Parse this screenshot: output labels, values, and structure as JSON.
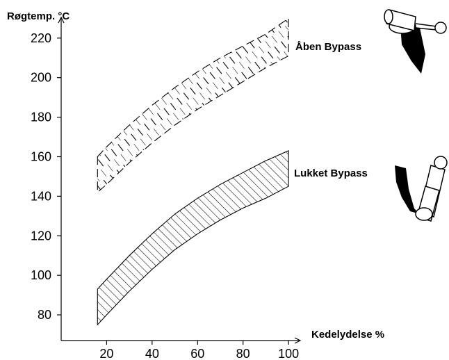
{
  "chart_data": {
    "type": "area",
    "title": "",
    "ylabel": "Røgtemp. °C",
    "xlabel": "Kedelydelse %",
    "xticks": [
      20,
      40,
      60,
      80,
      100
    ],
    "yticks": [
      80,
      100,
      120,
      140,
      160,
      180,
      200,
      220
    ],
    "xlim": [
      0,
      107
    ],
    "ylim": [
      67,
      234
    ],
    "grid": false,
    "legend": "none",
    "series": [
      {
        "name": "Åben Bypass",
        "style": "dashed-hatch",
        "color": "#000000",
        "x": [
          16,
          20,
          30,
          40,
          50,
          60,
          70,
          80,
          90,
          100
        ],
        "upper": [
          160,
          165,
          176,
          186,
          195,
          203,
          210,
          216,
          222,
          230
        ],
        "lower": [
          142,
          146,
          157,
          167,
          176,
          184,
          191,
          198,
          205,
          211
        ]
      },
      {
        "name": "Lukket Bypass",
        "style": "diagonal-hatch",
        "color": "#000000",
        "x": [
          16,
          20,
          30,
          40,
          50,
          60,
          70,
          80,
          90,
          100
        ],
        "upper": [
          93,
          98,
          110,
          121,
          131,
          139,
          146,
          152,
          158,
          163
        ],
        "lower": [
          75,
          80,
          92,
          103,
          113,
          121,
          128,
          134,
          139,
          145
        ]
      }
    ]
  }
}
